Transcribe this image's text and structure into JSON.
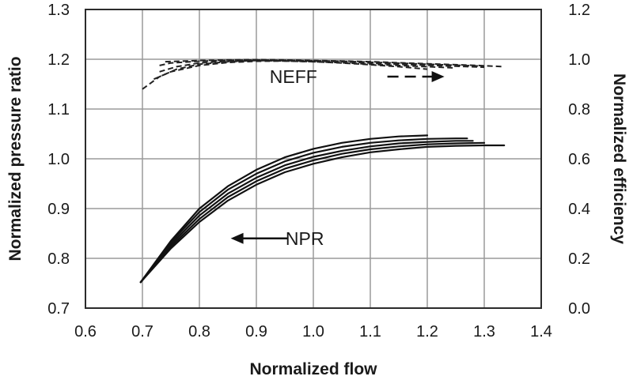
{
  "chart_data": {
    "type": "line",
    "xlabel": "Normalized flow",
    "ylabel_left": "Normalized pressure ratio",
    "ylabel_right": "Normalized efficiency",
    "xlim": [
      0.6,
      1.4
    ],
    "ylim_left": [
      0.7,
      1.3
    ],
    "ylim_right": [
      0.0,
      1.2
    ],
    "xticks": [
      "0.6",
      "0.7",
      "0.8",
      "0.9",
      "1.0",
      "1.1",
      "1.2",
      "1.3",
      "1.4"
    ],
    "yticks_left": [
      "0.7",
      "0.8",
      "0.9",
      "1.0",
      "1.1",
      "1.2",
      "1.3"
    ],
    "yticks_right": [
      "0.0",
      "0.2",
      "0.4",
      "0.6",
      "0.8",
      "1.0",
      "1.2"
    ],
    "grid": true,
    "annotations": [
      {
        "text": "NEFF",
        "x": 0.965,
        "y_left": 1.165
      },
      {
        "text": "NPR",
        "x": 0.985,
        "y_left": 0.84
      }
    ],
    "npr_series": [
      {
        "x": [
          0.697,
          0.75,
          0.8,
          0.85,
          0.9,
          0.95,
          1.0,
          1.05,
          1.1,
          1.15,
          1.2
        ],
        "y": [
          0.752,
          0.835,
          0.9,
          0.945,
          0.978,
          1.003,
          1.02,
          1.032,
          1.04,
          1.045,
          1.047
        ]
      },
      {
        "x": [
          0.697,
          0.75,
          0.8,
          0.85,
          0.9,
          0.95,
          1.0,
          1.05,
          1.1,
          1.15,
          1.2,
          1.25,
          1.27
        ],
        "y": [
          0.752,
          0.832,
          0.893,
          0.938,
          0.97,
          0.995,
          1.012,
          1.024,
          1.032,
          1.037,
          1.04,
          1.041,
          1.041
        ]
      },
      {
        "x": [
          0.697,
          0.75,
          0.8,
          0.85,
          0.9,
          0.95,
          1.0,
          1.05,
          1.1,
          1.15,
          1.2,
          1.25,
          1.28
        ],
        "y": [
          0.752,
          0.828,
          0.886,
          0.93,
          0.962,
          0.987,
          1.004,
          1.016,
          1.025,
          1.031,
          1.034,
          1.036,
          1.036
        ]
      },
      {
        "x": [
          0.697,
          0.75,
          0.8,
          0.85,
          0.9,
          0.95,
          1.0,
          1.05,
          1.1,
          1.15,
          1.2,
          1.25,
          1.3
        ],
        "y": [
          0.752,
          0.824,
          0.879,
          0.923,
          0.955,
          0.98,
          0.997,
          1.01,
          1.019,
          1.025,
          1.029,
          1.031,
          1.032
        ]
      },
      {
        "x": [
          0.697,
          0.75,
          0.8,
          0.85,
          0.9,
          0.95,
          1.0,
          1.05,
          1.1,
          1.15,
          1.2,
          1.25,
          1.3,
          1.335
        ],
        "y": [
          0.752,
          0.82,
          0.873,
          0.916,
          0.948,
          0.973,
          0.99,
          1.003,
          1.013,
          1.019,
          1.024,
          1.026,
          1.027,
          1.027
        ]
      }
    ],
    "neff_series": [
      {
        "x": [
          0.7,
          0.73,
          0.76,
          0.8,
          0.85,
          0.9,
          0.95,
          1.0,
          1.05,
          1.1,
          1.15,
          1.2
        ],
        "y_right": [
          0.88,
          0.93,
          0.96,
          0.98,
          0.99,
          0.995,
          0.993,
          0.99,
          0.985,
          0.978,
          0.97,
          0.96
        ]
      },
      {
        "x": [
          0.72,
          0.75,
          0.8,
          0.85,
          0.9,
          0.95,
          1.0,
          1.05,
          1.1,
          1.15,
          1.2,
          1.25
        ],
        "y_right": [
          0.92,
          0.95,
          0.975,
          0.987,
          0.992,
          0.993,
          0.99,
          0.986,
          0.98,
          0.975,
          0.97,
          0.965
        ]
      },
      {
        "x": [
          0.73,
          0.76,
          0.8,
          0.85,
          0.9,
          0.95,
          1.0,
          1.05,
          1.1,
          1.15,
          1.2,
          1.25,
          1.3
        ],
        "y_right": [
          0.95,
          0.97,
          0.985,
          0.992,
          0.995,
          0.995,
          0.993,
          0.99,
          0.985,
          0.98,
          0.976,
          0.972,
          0.968
        ]
      },
      {
        "x": [
          0.73,
          0.75,
          0.8,
          0.85,
          0.9,
          0.95,
          1.0,
          1.05,
          1.1,
          1.15,
          1.2,
          1.25,
          1.3
        ],
        "y_right": [
          0.975,
          0.985,
          0.992,
          0.996,
          0.997,
          0.996,
          0.994,
          0.992,
          0.988,
          0.984,
          0.98,
          0.976,
          0.972
        ]
      },
      {
        "x": [
          0.74,
          0.8,
          0.85,
          0.9,
          0.95,
          1.0,
          1.05,
          1.1,
          1.15,
          1.2,
          1.25,
          1.3,
          1.335
        ],
        "y_right": [
          0.99,
          0.995,
          0.997,
          0.998,
          0.997,
          0.995,
          0.993,
          0.99,
          0.986,
          0.982,
          0.978,
          0.974,
          0.97
        ]
      }
    ],
    "arrows": [
      {
        "style": "solid",
        "direction": "left",
        "x_from": 0.955,
        "x_to": 0.855,
        "y_left": 0.84
      },
      {
        "style": "dashed",
        "direction": "right",
        "x_from": 1.13,
        "x_to": 1.23,
        "y_left": 1.165
      }
    ]
  }
}
